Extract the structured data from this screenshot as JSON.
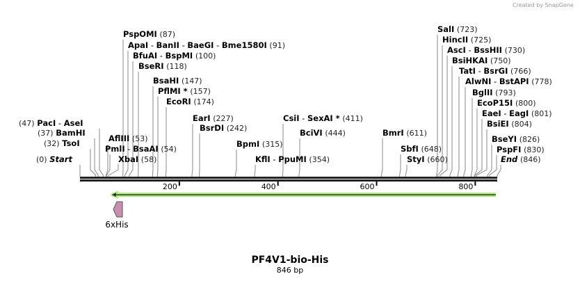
{
  "credit": "Created by SnapGene",
  "title": "PF4V1-bio-His",
  "length_label": "846 bp",
  "sequence_length": 846,
  "ticks": [
    {
      "bp": 200,
      "label": "200"
    },
    {
      "bp": 400,
      "label": "400"
    },
    {
      "bp": 600,
      "label": "600"
    },
    {
      "bp": 800,
      "label": "800"
    }
  ],
  "features": [
    {
      "name": "6xHis",
      "color": "#c98fb0",
      "type": "tag"
    },
    {
      "name": "",
      "color": "#a8f07a",
      "type": "orf-arrow",
      "start_bp": 66,
      "end_bp": 843,
      "direction": "reverse"
    }
  ],
  "sites": [
    {
      "enzymes": [
        "PacI",
        "AseI"
      ],
      "pos": "(47)",
      "bp": 47
    },
    {
      "enzymes": [
        "BamHI"
      ],
      "pos": "(37)",
      "bp": 37
    },
    {
      "enzymes": [
        "TsoI"
      ],
      "pos": "(32)",
      "bp": 32
    },
    {
      "enzymes": [
        "Start"
      ],
      "pos": "(0)",
      "bp": 0,
      "italic": true
    },
    {
      "enzymes": [
        "AflIII"
      ],
      "pos": "(53)",
      "bp": 53
    },
    {
      "enzymes": [
        "PmlI",
        "BsaAI"
      ],
      "pos": "(54)",
      "bp": 54
    },
    {
      "enzymes": [
        "XbaI"
      ],
      "pos": "(58)",
      "bp": 58
    },
    {
      "enzymes": [
        "PspOMI"
      ],
      "pos": "(87)",
      "bp": 87
    },
    {
      "enzymes": [
        "ApaI",
        "BanII",
        "BaeGI",
        "Bme1580I"
      ],
      "pos": "(91)",
      "bp": 91
    },
    {
      "enzymes": [
        "BfuAI",
        "BspMI"
      ],
      "pos": "(100)",
      "bp": 100
    },
    {
      "enzymes": [
        "BseRI"
      ],
      "pos": "(118)",
      "bp": 118
    },
    {
      "enzymes": [
        "BsaHI"
      ],
      "pos": "(147)",
      "bp": 147
    },
    {
      "enzymes": [
        "PflMI *"
      ],
      "pos": "(157)",
      "bp": 157
    },
    {
      "enzymes": [
        "EcoRI"
      ],
      "pos": "(174)",
      "bp": 174
    },
    {
      "enzymes": [
        "EarI"
      ],
      "pos": "(227)",
      "bp": 227
    },
    {
      "enzymes": [
        "BsrDI"
      ],
      "pos": "(242)",
      "bp": 242
    },
    {
      "enzymes": [
        "BpmI"
      ],
      "pos": "(315)",
      "bp": 315
    },
    {
      "enzymes": [
        "KflI",
        "PpuMI"
      ],
      "pos": "(354)",
      "bp": 354
    },
    {
      "enzymes": [
        "CsiI",
        "SexAI *"
      ],
      "pos": "(411)",
      "bp": 411
    },
    {
      "enzymes": [
        "BciVI"
      ],
      "pos": "(444)",
      "bp": 444
    },
    {
      "enzymes": [
        "BmrI"
      ],
      "pos": "(611)",
      "bp": 611
    },
    {
      "enzymes": [
        "SbfI"
      ],
      "pos": "(648)",
      "bp": 648
    },
    {
      "enzymes": [
        "StyI"
      ],
      "pos": "(660)",
      "bp": 660
    },
    {
      "enzymes": [
        "SalI"
      ],
      "pos": "(723)",
      "bp": 723
    },
    {
      "enzymes": [
        "HincII"
      ],
      "pos": "(725)",
      "bp": 725
    },
    {
      "enzymes": [
        "AscI",
        "BssHII"
      ],
      "pos": "(730)",
      "bp": 730
    },
    {
      "enzymes": [
        "BsiHKAI"
      ],
      "pos": "(750)",
      "bp": 750
    },
    {
      "enzymes": [
        "TatI",
        "BsrGI"
      ],
      "pos": "(766)",
      "bp": 766
    },
    {
      "enzymes": [
        "AlwNI",
        "BstAPI"
      ],
      "pos": "(778)",
      "bp": 778
    },
    {
      "enzymes": [
        "BglII"
      ],
      "pos": "(793)",
      "bp": 793
    },
    {
      "enzymes": [
        "EcoP15I"
      ],
      "pos": "(800)",
      "bp": 800
    },
    {
      "enzymes": [
        "EaeI",
        "EagI"
      ],
      "pos": "(801)",
      "bp": 801
    },
    {
      "enzymes": [
        "BsiEI"
      ],
      "pos": "(804)",
      "bp": 804
    },
    {
      "enzymes": [
        "BseYI"
      ],
      "pos": "(826)",
      "bp": 826
    },
    {
      "enzymes": [
        "PspFI"
      ],
      "pos": "(830)",
      "bp": 830
    },
    {
      "enzymes": [
        "End"
      ],
      "pos": "(846)",
      "bp": 846,
      "italic": true
    }
  ]
}
